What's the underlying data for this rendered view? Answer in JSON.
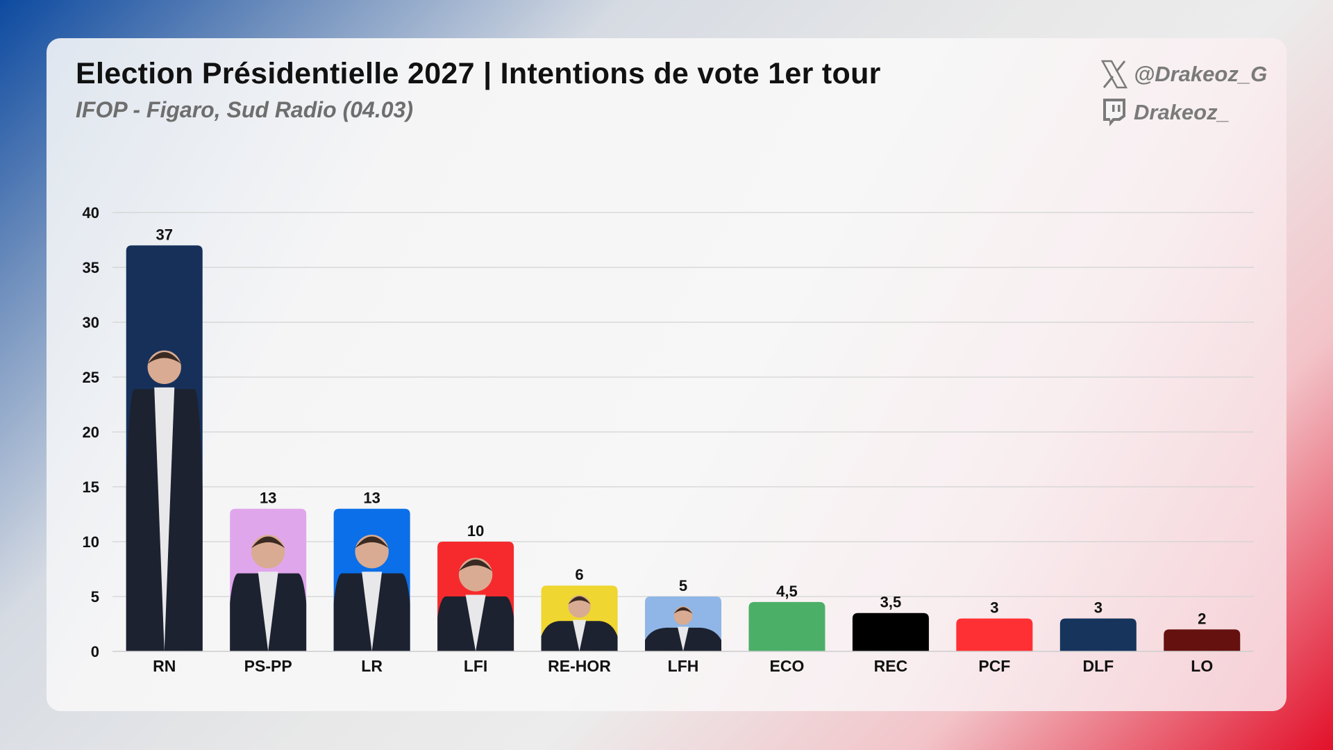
{
  "header": {
    "title": "Election Présidentielle 2027 | Intentions de vote 1er tour",
    "subtitle": "IFOP - Figaro, Sud Radio (04.03)"
  },
  "social": {
    "x_handle": "@Drakeoz_G",
    "twitch_handle": "Drakeoz_",
    "x_icon": "x-logo-icon",
    "twitch_icon": "twitch-logo-icon"
  },
  "chart_data": {
    "type": "bar",
    "title": "Election Présidentielle 2027 | Intentions de vote 1er tour",
    "subtitle": "IFOP - Figaro, Sud Radio (04.03)",
    "xlabel": "",
    "ylabel": "",
    "ylim": [
      0,
      40
    ],
    "yticks": [
      0,
      5,
      10,
      15,
      20,
      25,
      30,
      35,
      40
    ],
    "grid": true,
    "categories": [
      "RN",
      "PS-PP",
      "LR",
      "LFI",
      "RE-HOR",
      "LFH",
      "ECO",
      "REC",
      "PCF",
      "DLF",
      "LO"
    ],
    "values": [
      37,
      13,
      13,
      10,
      6,
      5,
      4.5,
      3.5,
      3,
      3,
      2
    ],
    "value_labels": [
      "37",
      "13",
      "13",
      "10",
      "6",
      "5",
      "4,5",
      "3,5",
      "3",
      "3",
      "2"
    ],
    "colors": [
      "#16305a",
      "#e0a6ec",
      "#0a6fe8",
      "#f62a2d",
      "#efd630",
      "#8fb6e6",
      "#4caf68",
      "#000000",
      "#ff3033",
      "#17345c",
      "#65110f"
    ],
    "has_photo": [
      true,
      true,
      true,
      true,
      true,
      true,
      false,
      false,
      false,
      false,
      false
    ]
  }
}
